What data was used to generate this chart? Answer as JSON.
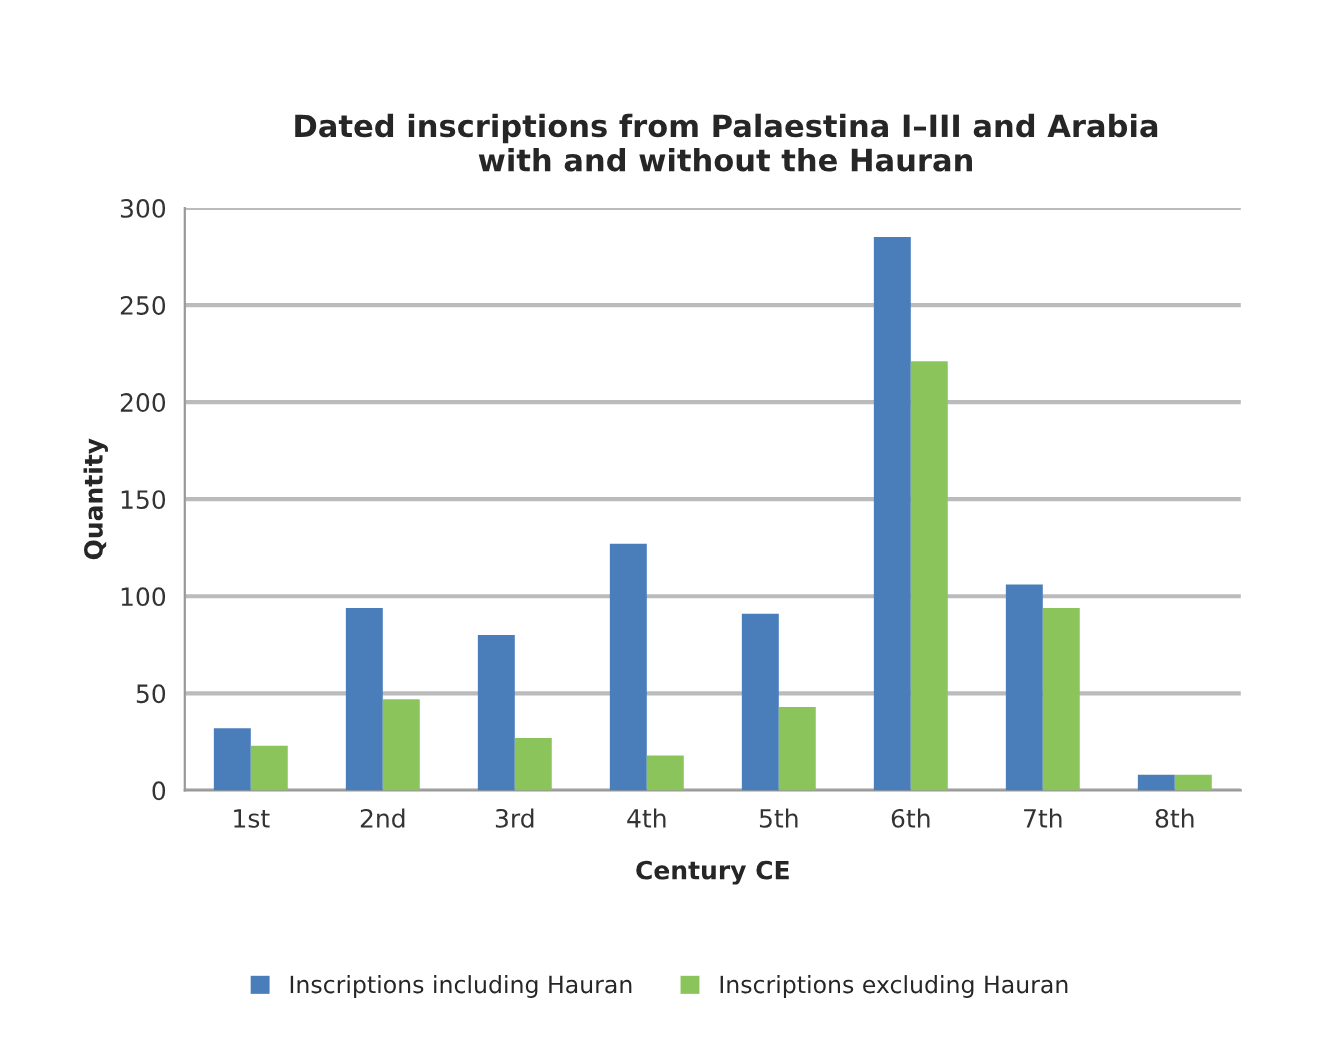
{
  "chart_data": {
    "type": "bar",
    "title": "Dated inscriptions from Palaestina I–III and Arabia\nwith and without the Hauran",
    "xlabel": "Century CE",
    "ylabel": "Quantity",
    "categories": [
      "1st",
      "2nd",
      "3rd",
      "4th",
      "5th",
      "6th",
      "7th",
      "8th"
    ],
    "series": [
      {
        "name": "Inscriptions including Hauran",
        "color": "#4a7ebb",
        "values": [
          32,
          94,
          80,
          127,
          91,
          285,
          106,
          8
        ]
      },
      {
        "name": "Inscriptions excluding Hauran",
        "color": "#8cc45c",
        "values": [
          23,
          47,
          27,
          18,
          43,
          221,
          94,
          8
        ]
      }
    ],
    "ylim": [
      0,
      300
    ],
    "yticks": [
      0,
      50,
      100,
      150,
      200,
      250,
      300
    ],
    "grid": "y",
    "legend": "bottom"
  }
}
